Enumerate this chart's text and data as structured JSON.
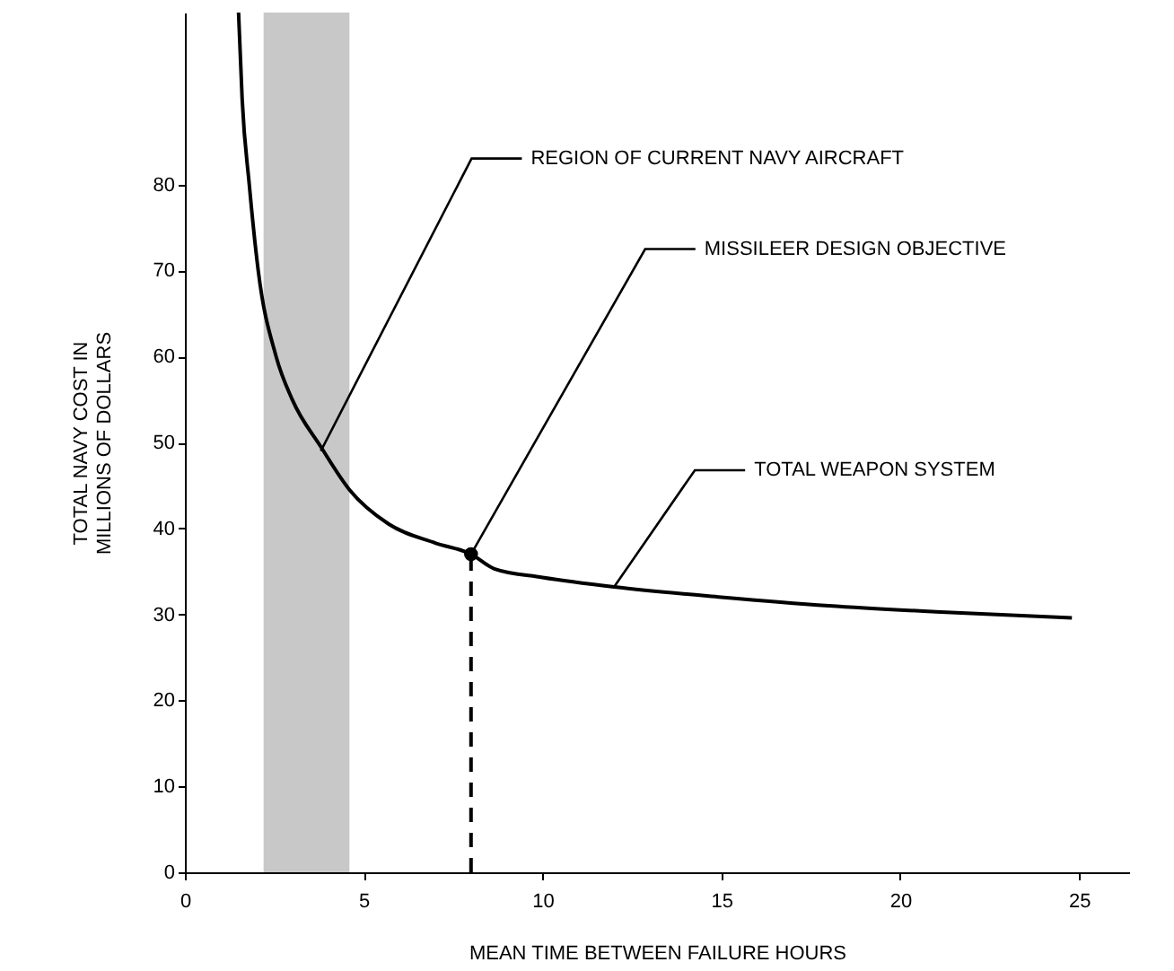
{
  "chart_data": {
    "type": "line",
    "xlabel": "MEAN TIME BETWEEN FAILURE HOURS",
    "ylabel": "TOTAL NAVY COST IN MILLIONS OF DOLLARS",
    "xlim": [
      0,
      26.4
    ],
    "ylim": [
      0,
      100
    ],
    "xticks": [
      0,
      5,
      10,
      15,
      20,
      25
    ],
    "yticks": [
      0,
      10,
      20,
      30,
      40,
      50,
      60,
      70,
      80
    ],
    "grid": false,
    "series": [
      {
        "name": "TOTAL WEAPON SYSTEM",
        "color": "#000000",
        "x": [
          1.5,
          1.6,
          1.8,
          2.05,
          2.55,
          3.0,
          3.8,
          4.6,
          5.7,
          7.0,
          8.0,
          8.65,
          10,
          12,
          15,
          18,
          21,
          24.8
        ],
        "values": [
          100,
          90,
          80,
          70,
          60,
          55,
          49.5,
          44.5,
          40.5,
          38.3,
          37,
          35.3,
          34.3,
          33.2,
          32,
          31,
          30.3,
          29.6
        ],
        "marker": "none"
      },
      {
        "type": "line",
        "color": "#000000",
        "x": [
          8,
          8
        ],
        "values": [
          0,
          37
        ],
        "line_style": "dashed",
        "marker": "none"
      },
      {
        "type": "scatter",
        "color": "#000000",
        "x": [
          8
        ],
        "values": [
          37
        ],
        "marker": "circle"
      }
    ],
    "bands": [
      {
        "axis": "x",
        "from": 2.2,
        "to": 4.6,
        "color": "#9a9a9a"
      }
    ],
    "annotations": [
      {
        "text": "REGION OF CURRENT NAVY AIRCRAFT",
        "x": 3.8,
        "y": 49
      },
      {
        "text": "MISSILEER DESIGN OBJECTIVE",
        "x": 8,
        "y": 37
      }
    ]
  }
}
